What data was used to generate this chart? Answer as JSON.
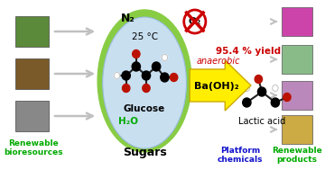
{
  "bg_color": "#ffffff",
  "labels": {
    "renewable_bio": "Renewable\nbioresources",
    "sugars": "Sugars",
    "platform": "Platform\nchemicals",
    "renewable_prod": "Renewable\nproducts",
    "glucose": "Glucose",
    "water": "H₂O",
    "lactic_acid": "Lactic acid",
    "n2": "N₂",
    "o2": "O₂",
    "temp": "25 °C",
    "anaerobic": "anaerobic",
    "catalyst": "Ba(OH)₂",
    "yield": "95.4 % yield"
  },
  "colors": {
    "green_text": "#00aa00",
    "blue_text": "#1111cc",
    "red_text": "#cc0000",
    "yellow_arrow": "#ffee00",
    "yellow_arrow_edge": "#ccaa00",
    "ellipse_fill": "#c8dff0",
    "ellipse_outer": "#88cc44",
    "black": "#000000",
    "white": "#ffffff",
    "red": "#cc0000",
    "gray_arrow": "#c0c0c0",
    "dark_red": "#bb1100",
    "bond_color": "#222222"
  },
  "layout": {
    "fig_w": 3.6,
    "fig_h": 1.89,
    "dpi": 100,
    "xmax": 360,
    "ymax": 189
  }
}
